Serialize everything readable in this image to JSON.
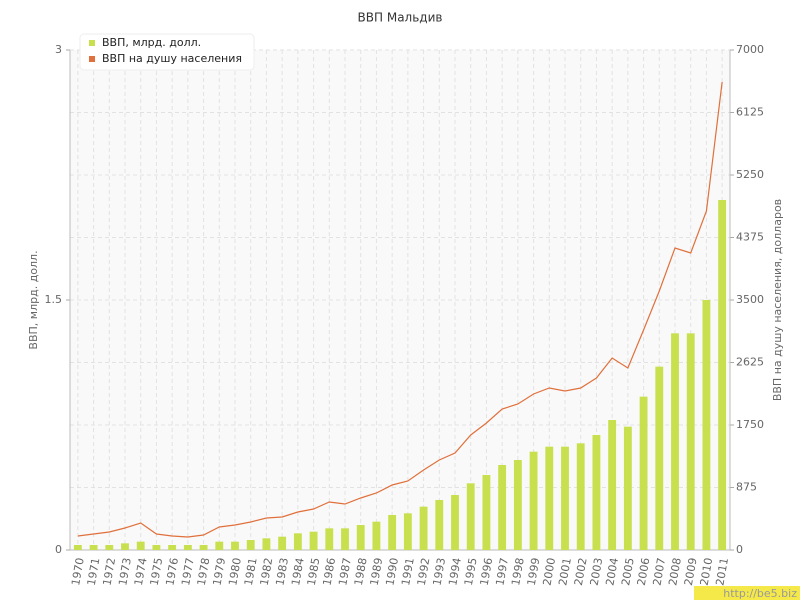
{
  "chart_data": {
    "type": "bar-line",
    "title": "ВВП Мальдив",
    "categories": [
      "1970",
      "1971",
      "1972",
      "1973",
      "1974",
      "1975",
      "1976",
      "1977",
      "1978",
      "1979",
      "1980",
      "1981",
      "1982",
      "1983",
      "1984",
      "1985",
      "1986",
      "1987",
      "1988",
      "1989",
      "1990",
      "1991",
      "1992",
      "1993",
      "1994",
      "1995",
      "1996",
      "1997",
      "1998",
      "1999",
      "2000",
      "2001",
      "2002",
      "2003",
      "2004",
      "2005",
      "2006",
      "2007",
      "2008",
      "2009",
      "2010",
      "2011"
    ],
    "series": [
      {
        "name": "ВВП, млрд. долл.",
        "type": "bar",
        "color": "#c8e04e",
        "values": [
          0.03,
          0.03,
          0.03,
          0.04,
          0.05,
          0.03,
          0.03,
          0.03,
          0.03,
          0.05,
          0.05,
          0.06,
          0.07,
          0.08,
          0.1,
          0.11,
          0.13,
          0.13,
          0.15,
          0.17,
          0.21,
          0.22,
          0.26,
          0.3,
          0.33,
          0.4,
          0.45,
          0.51,
          0.54,
          0.59,
          0.62,
          0.62,
          0.64,
          0.69,
          0.78,
          0.74,
          0.92,
          1.1,
          1.3,
          1.3,
          1.5,
          2.1
        ]
      },
      {
        "name": "ВВП на душу населения",
        "type": "line",
        "axis": "y2",
        "color": "#e0703c",
        "values": [
          196,
          224,
          252,
          308,
          378,
          224,
          196,
          182,
          210,
          322,
          350,
          392,
          448,
          462,
          532,
          574,
          672,
          644,
          728,
          798,
          910,
          966,
          1120,
          1260,
          1358,
          1610,
          1778,
          1974,
          2044,
          2184,
          2268,
          2226,
          2268,
          2408,
          2688,
          2548,
          3080,
          3626,
          4228,
          4158,
          4746,
          6552
        ]
      }
    ],
    "ylabel": "ВВП, млрд. долл.",
    "y2label": "ВВП на душу населения, долларов",
    "ylim": [
      0,
      3
    ],
    "yticks": [
      0,
      1.5,
      3
    ],
    "y2lim": [
      0,
      7000
    ],
    "y2ticks": [
      0,
      875,
      1750,
      2625,
      3500,
      4375,
      5250,
      6125,
      7000
    ],
    "grid": true,
    "legend": "top-left",
    "watermark": "http://be5.biz"
  }
}
